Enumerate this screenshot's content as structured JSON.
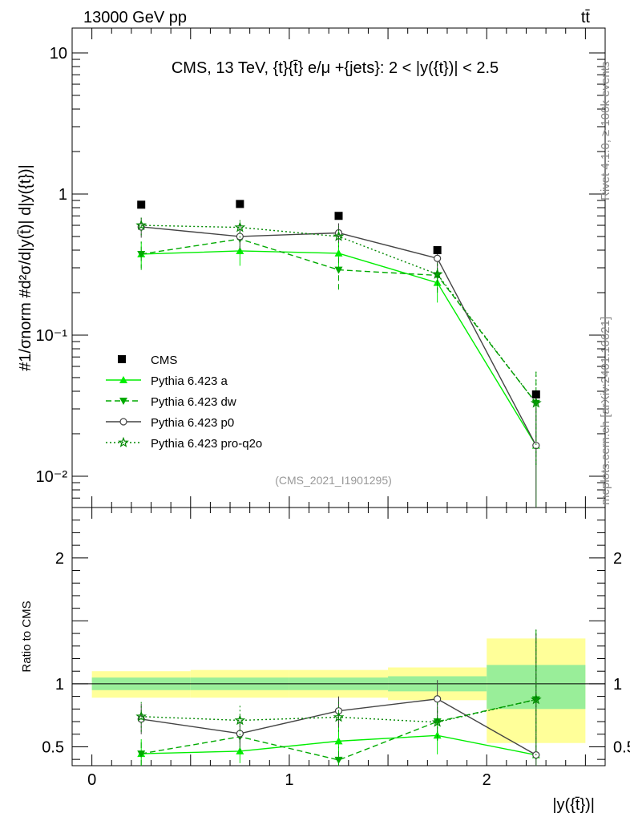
{
  "header": {
    "left": "13000 GeV pp",
    "right": "tt̄"
  },
  "side_labels": {
    "rivet": "Rivet 4.1.0, ≥ 100k events",
    "mcplots": "mcplots.cern.ch [arXiv:2401.10621]"
  },
  "chart_data": {
    "type": "line",
    "title": "CMS, 13 TeV, {t}{t̄} e/μ +{jets}: 2 < |y({t})| < 2.5",
    "analysis_tag": "(CMS_2021_I1901295)",
    "xlabel": "|y({t̄})|",
    "ylabel_main": "#1/σnorm #d²σ/d|y(t̄)| d|y({t})|",
    "ylabel_ratio": "Ratio to CMS",
    "xlim": [
      -0.1,
      2.6
    ],
    "ylim_main_log": [
      0.006,
      15
    ],
    "ylim_ratio": [
      0.35,
      2.4
    ],
    "x_ticks": [
      0,
      1,
      2
    ],
    "y_ticks_main": [
      {
        "value": 10,
        "label": "10"
      },
      {
        "value": 1,
        "label": "1"
      },
      {
        "value": 0.1,
        "label": "10⁻¹"
      },
      {
        "value": 0.01,
        "label": "10⁻²"
      }
    ],
    "y_ticks_ratio": [
      {
        "value": 2,
        "label": "2"
      },
      {
        "value": 1,
        "label": "1"
      },
      {
        "value": 0.5,
        "label": "0.5"
      }
    ],
    "bins": [
      [
        0,
        0.5
      ],
      [
        0.5,
        1.0
      ],
      [
        1.0,
        1.5
      ],
      [
        1.5,
        2.0
      ],
      [
        2.0,
        2.5
      ]
    ],
    "x": [
      0.25,
      0.75,
      1.25,
      1.75,
      2.25
    ],
    "data": {
      "name": "CMS",
      "values": [
        0.84,
        0.85,
        0.7,
        0.4,
        0.038
      ],
      "ratio_band_inner": [
        [
          0.95,
          1.05
        ],
        [
          0.95,
          1.05
        ],
        [
          0.95,
          1.05
        ],
        [
          0.94,
          1.06
        ],
        [
          0.8,
          1.15
        ]
      ],
      "ratio_band_outer": [
        [
          0.89,
          1.1
        ],
        [
          0.89,
          1.11
        ],
        [
          0.89,
          1.11
        ],
        [
          0.87,
          1.13
        ],
        [
          0.53,
          1.36
        ]
      ]
    },
    "series": [
      {
        "name": "Pythia 6.423 a",
        "color": "#00ee00",
        "dash": "",
        "marker": "triangle-up",
        "values": [
          0.375,
          0.395,
          0.38,
          0.235,
          0.0165
        ],
        "err_lo": [
          0.3,
          0.31,
          0.3,
          0.17,
          0.004
        ],
        "err_hi": [
          0.46,
          0.48,
          0.46,
          0.3,
          0.03
        ],
        "ratio": [
          0.445,
          0.465,
          0.545,
          0.59,
          0.435
        ],
        "ratio_lo": [
          0.35,
          0.37,
          0.44,
          0.44,
          0.35
        ],
        "ratio_hi": [
          0.56,
          0.57,
          0.66,
          0.74,
          1.4
        ]
      },
      {
        "name": "Pythia 6.423 dw",
        "color": "#00aa00",
        "dash": "7,4",
        "marker": "triangle-down",
        "values": [
          0.375,
          0.48,
          0.29,
          0.265,
          0.033
        ],
        "err_lo": [
          0.29,
          0.39,
          0.21,
          0.2,
          0.012
        ],
        "err_hi": [
          0.46,
          0.58,
          0.37,
          0.33,
          0.055
        ],
        "ratio": [
          0.445,
          0.58,
          0.395,
          0.7,
          0.875
        ],
        "ratio_lo": [
          0.35,
          0.46,
          0.35,
          0.55,
          0.4
        ],
        "ratio_hi": [
          0.56,
          0.7,
          0.5,
          0.85,
          1.45
        ]
      },
      {
        "name": "Pythia 6.423 p0",
        "color": "#444444",
        "dash": "",
        "marker": "circle",
        "values": [
          0.585,
          0.5,
          0.53,
          0.35,
          0.0165
        ],
        "err_lo": [
          0.49,
          0.41,
          0.45,
          0.29,
          0.004
        ],
        "err_hi": [
          0.68,
          0.6,
          0.62,
          0.42,
          0.03
        ],
        "ratio": [
          0.72,
          0.605,
          0.785,
          0.88,
          0.435
        ],
        "ratio_lo": [
          0.6,
          0.5,
          0.66,
          0.73,
          0.35
        ],
        "ratio_hi": [
          0.84,
          0.71,
          0.9,
          1.03,
          1.4
        ]
      },
      {
        "name": "Pythia 6.423 pro-q2o",
        "color": "#008800",
        "dash": "2,3",
        "marker": "star",
        "values": [
          0.6,
          0.58,
          0.5,
          0.27,
          0.033
        ],
        "err_lo": [
          0.51,
          0.49,
          0.42,
          0.21,
          0.012
        ],
        "err_hi": [
          0.7,
          0.68,
          0.59,
          0.33,
          0.055
        ],
        "ratio": [
          0.74,
          0.71,
          0.735,
          0.695,
          0.875
        ],
        "ratio_lo": [
          0.62,
          0.59,
          0.62,
          0.55,
          0.4
        ],
        "ratio_hi": [
          0.86,
          0.83,
          0.86,
          0.85,
          1.45
        ]
      }
    ],
    "legend_position": "center-left"
  }
}
